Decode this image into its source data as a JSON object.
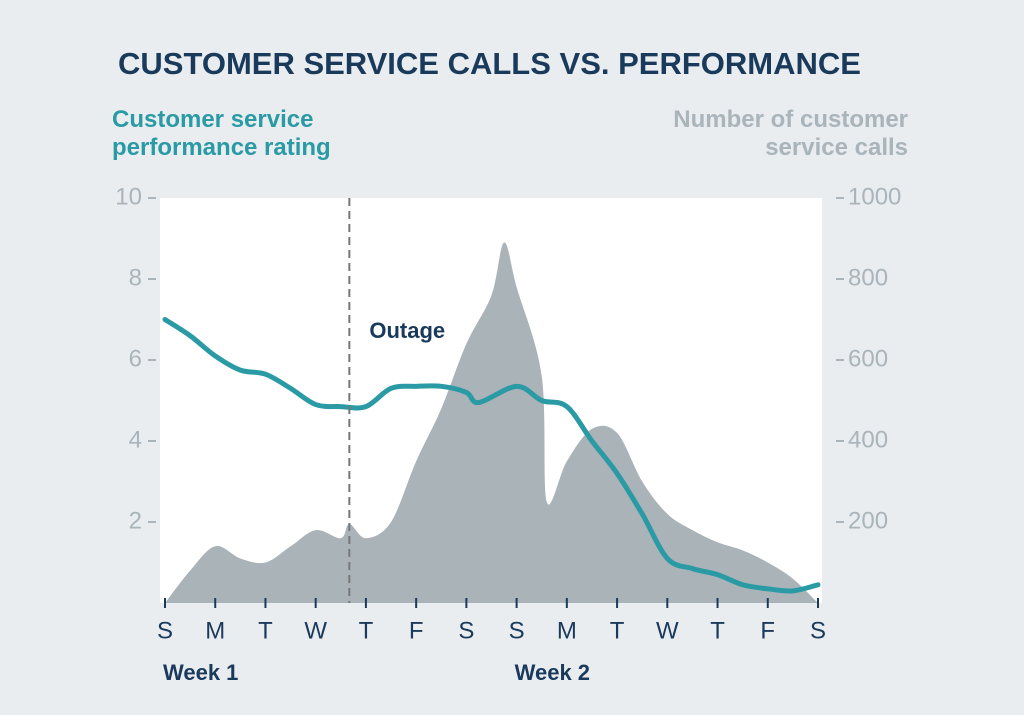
{
  "chart_data": {
    "type": "line",
    "title": "CUSTOMER SERVICE CALLS VS. PERFORMANCE",
    "y_label": "Customer service performance rating",
    "y2_label": "Number of customer service calls",
    "xlim": [
      0,
      13
    ],
    "xticks": [
      {
        "value": 0,
        "label": "S"
      },
      {
        "value": 1,
        "label": "M"
      },
      {
        "value": 2,
        "label": "T"
      },
      {
        "value": 3,
        "label": "W"
      },
      {
        "value": 4,
        "label": "T"
      },
      {
        "value": 5,
        "label": "F"
      },
      {
        "value": 6,
        "label": "S"
      },
      {
        "value": 7,
        "label": "S"
      },
      {
        "value": 8,
        "label": "M"
      },
      {
        "value": 9,
        "label": "T"
      },
      {
        "value": 10,
        "label": "W"
      },
      {
        "value": 11,
        "label": "T"
      },
      {
        "value": 12,
        "label": "F"
      },
      {
        "value": 13,
        "label": "S"
      }
    ],
    "groups": [
      {
        "label": "Week 1",
        "x": 0
      },
      {
        "label": "Week 2",
        "x": 7
      }
    ],
    "ylim": [
      0,
      10
    ],
    "yticks": [
      2,
      4,
      6,
      8,
      10
    ],
    "y2lim": [
      0,
      1000
    ],
    "y2ticks": [
      200,
      400,
      600,
      800,
      1000
    ],
    "annotations": [
      {
        "text": "Outage",
        "x": 3.67
      }
    ],
    "series": [
      {
        "name": "Number of customer service calls",
        "kind": "area",
        "axis": "y2",
        "color": "#aab3b8",
        "x": [
          0,
          0.5,
          1,
          1.5,
          2,
          2.5,
          3,
          3.5,
          3.67,
          4,
          4.5,
          5,
          5.5,
          6,
          6.5,
          6.75,
          7,
          7.5,
          7.6,
          8,
          8.5,
          9,
          9.5,
          10,
          10.5,
          11,
          11.5,
          12,
          12.5,
          13
        ],
        "values": [
          0,
          80,
          140,
          110,
          100,
          140,
          180,
          160,
          195,
          160,
          200,
          350,
          480,
          640,
          760,
          890,
          780,
          560,
          250,
          350,
          430,
          420,
          300,
          220,
          180,
          150,
          130,
          100,
          60,
          0
        ]
      },
      {
        "name": "Customer service performance rating",
        "kind": "line",
        "color": "#2a9aa5",
        "x": [
          0,
          0.5,
          1,
          1.5,
          2,
          2.5,
          3,
          3.5,
          4,
          4.5,
          5,
          5.5,
          6,
          6.25,
          7,
          7.5,
          8,
          8.5,
          9,
          9.5,
          10,
          10.5,
          11,
          11.5,
          12,
          12.5,
          13
        ],
        "values": [
          7.0,
          6.6,
          6.1,
          5.75,
          5.65,
          5.3,
          4.9,
          4.85,
          4.85,
          5.3,
          5.35,
          5.35,
          5.2,
          4.95,
          5.35,
          5.0,
          4.85,
          4.0,
          3.2,
          2.2,
          1.1,
          0.85,
          0.7,
          0.45,
          0.35,
          0.3,
          0.45
        ]
      }
    ]
  }
}
